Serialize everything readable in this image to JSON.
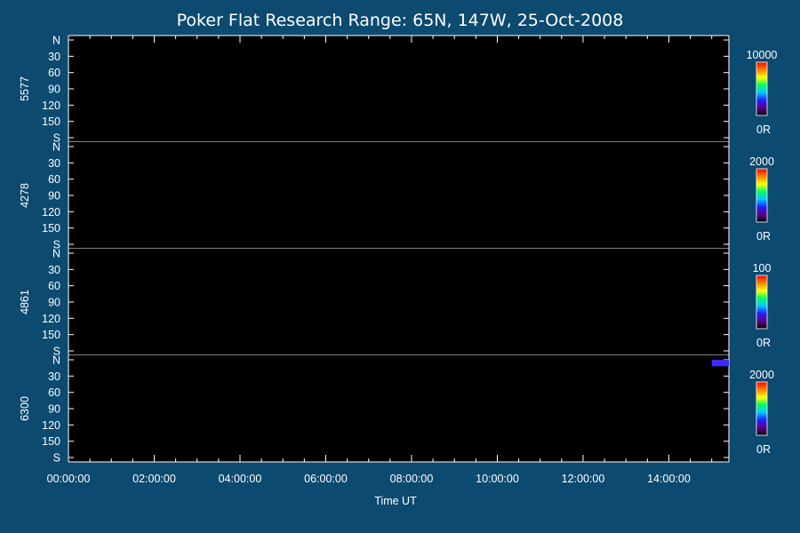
{
  "chart_data": {
    "type": "heatmap",
    "title": "Poker Flat Research Range: 65N, 147W, 25-Oct-2008",
    "xlabel": "Time UT",
    "x_tick_labels": [
      "00:00:00",
      "02:00:00",
      "04:00:00",
      "06:00:00",
      "08:00:00",
      "10:00:00",
      "12:00:00",
      "14:00:00"
    ],
    "x_range_hours": [
      0,
      15.4
    ],
    "y_tick_labels": [
      "N",
      "30",
      "60",
      "90",
      "120",
      "150",
      "S"
    ],
    "y_range_deg": [
      0,
      180
    ],
    "panels": [
      {
        "label": "5577",
        "colorbar_max": "10000",
        "colorbar_min": "0R"
      },
      {
        "label": "4278",
        "colorbar_max": "2000",
        "colorbar_min": "0R"
      },
      {
        "label": "4861",
        "colorbar_max": "100",
        "colorbar_min": "0R"
      },
      {
        "label": "6300",
        "colorbar_max": "2000",
        "colorbar_min": "0R"
      }
    ],
    "colormap": [
      "#000000",
      "#5a0088",
      "#2020ff",
      "#00c8ff",
      "#00ff60",
      "#ffff00",
      "#ff8000",
      "#ff0000"
    ],
    "features": [
      {
        "panel": 3,
        "time_start_h": 15.0,
        "time_end_h": 15.4,
        "deg_start": 0,
        "deg_end": 12,
        "color": "#3a2cff"
      }
    ]
  }
}
